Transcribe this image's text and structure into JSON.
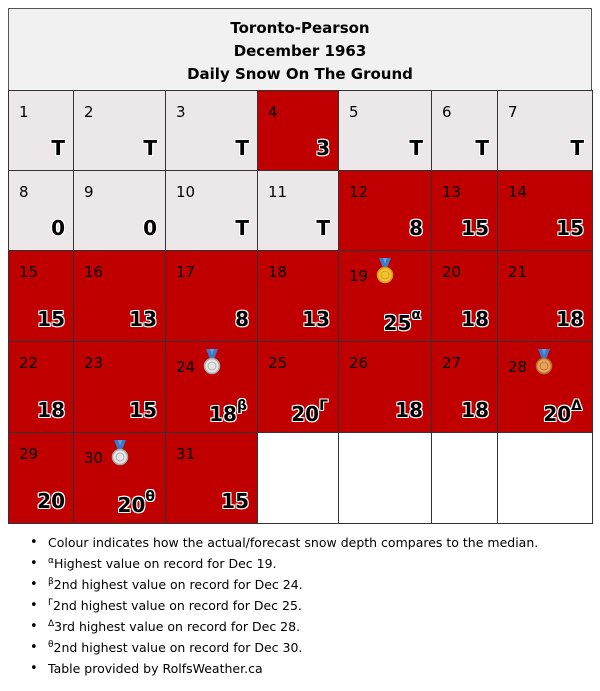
{
  "header": {
    "station": "Toronto-Pearson",
    "month": "December 1963",
    "title": "Daily Snow On The Ground"
  },
  "colors": {
    "above_median": "#c00000",
    "below_median": "#ece7e8",
    "header_bg": "#f1f1f1"
  },
  "days": [
    {
      "day": "1",
      "value": "T",
      "sup": "",
      "style": "light"
    },
    {
      "day": "2",
      "value": "T",
      "sup": "",
      "style": "light"
    },
    {
      "day": "3",
      "value": "T",
      "sup": "",
      "style": "light"
    },
    {
      "day": "4",
      "value": "3",
      "sup": "",
      "style": "red"
    },
    {
      "day": "5",
      "value": "T",
      "sup": "",
      "style": "light"
    },
    {
      "day": "6",
      "value": "T",
      "sup": "",
      "style": "light"
    },
    {
      "day": "7",
      "value": "T",
      "sup": "",
      "style": "light"
    },
    {
      "day": "8",
      "value": "0",
      "sup": "",
      "style": "light"
    },
    {
      "day": "9",
      "value": "0",
      "sup": "",
      "style": "light"
    },
    {
      "day": "10",
      "value": "T",
      "sup": "",
      "style": "light"
    },
    {
      "day": "11",
      "value": "T",
      "sup": "",
      "style": "light"
    },
    {
      "day": "12",
      "value": "8",
      "sup": "",
      "style": "red"
    },
    {
      "day": "13",
      "value": "15",
      "sup": "",
      "style": "red"
    },
    {
      "day": "14",
      "value": "15",
      "sup": "",
      "style": "red"
    },
    {
      "day": "15",
      "value": "15",
      "sup": "",
      "style": "red"
    },
    {
      "day": "16",
      "value": "13",
      "sup": "",
      "style": "red"
    },
    {
      "day": "17",
      "value": "8",
      "sup": "",
      "style": "red"
    },
    {
      "day": "18",
      "value": "13",
      "sup": "",
      "style": "red"
    },
    {
      "day": "19",
      "value": "25",
      "sup": "α",
      "style": "red",
      "medal": "gold-medal-icon"
    },
    {
      "day": "20",
      "value": "18",
      "sup": "",
      "style": "red"
    },
    {
      "day": "21",
      "value": "18",
      "sup": "",
      "style": "red"
    },
    {
      "day": "22",
      "value": "18",
      "sup": "",
      "style": "red"
    },
    {
      "day": "23",
      "value": "15",
      "sup": "",
      "style": "red"
    },
    {
      "day": "24",
      "value": "18",
      "sup": "β",
      "style": "red",
      "medal": "silver-medal-icon"
    },
    {
      "day": "25",
      "value": "20",
      "sup": "Γ",
      "style": "red"
    },
    {
      "day": "26",
      "value": "18",
      "sup": "",
      "style": "red"
    },
    {
      "day": "27",
      "value": "18",
      "sup": "",
      "style": "red"
    },
    {
      "day": "28",
      "value": "20",
      "sup": "Δ",
      "style": "red",
      "medal": "bronze-medal-icon"
    },
    {
      "day": "29",
      "value": "20",
      "sup": "",
      "style": "red"
    },
    {
      "day": "30",
      "value": "20",
      "sup": "θ",
      "style": "red",
      "medal": "silver-medal-icon"
    },
    {
      "day": "31",
      "value": "15",
      "sup": "",
      "style": "red"
    },
    {
      "day": "",
      "value": "",
      "sup": "",
      "style": "empty"
    },
    {
      "day": "",
      "value": "",
      "sup": "",
      "style": "empty"
    },
    {
      "day": "",
      "value": "",
      "sup": "",
      "style": "empty"
    },
    {
      "day": "",
      "value": "",
      "sup": "",
      "style": "empty"
    }
  ],
  "notes": [
    {
      "sup": "",
      "text": "Colour indicates how the actual/forecast snow depth compares to the median."
    },
    {
      "sup": "α",
      "text": "Highest value on record for Dec 19."
    },
    {
      "sup": "β",
      "text": "2nd highest value on record for Dec 24."
    },
    {
      "sup": "Γ",
      "text": "2nd highest value on record for Dec 25."
    },
    {
      "sup": "Δ",
      "text": "3rd highest value on record for Dec 28."
    },
    {
      "sup": "θ",
      "text": "2nd highest value on record for Dec 30."
    },
    {
      "sup": "",
      "text": "Table provided by RolfsWeather.ca"
    }
  ]
}
